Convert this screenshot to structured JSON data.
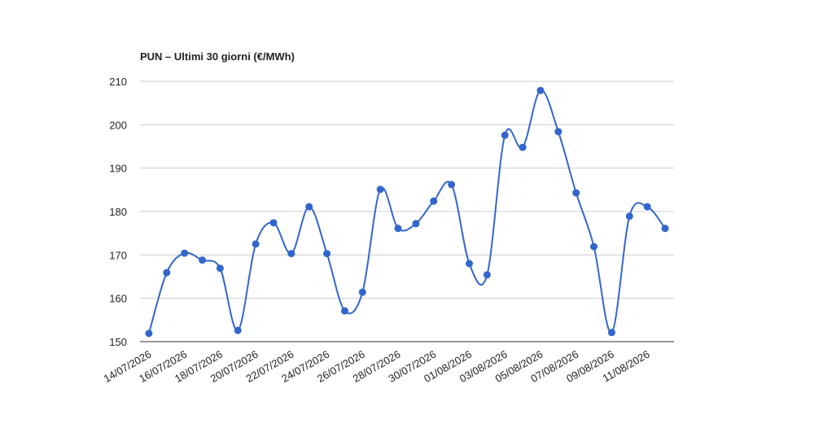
{
  "chart_data": {
    "type": "line",
    "title": "PUN – Ultimi 30 giorni (€/MWh)",
    "categories": [
      "14/07/2026",
      null,
      "16/07/2026",
      null,
      "18/07/2026",
      null,
      "20/07/2026",
      null,
      "22/07/2026",
      null,
      "24/07/2026",
      null,
      "26/07/2026",
      null,
      "28/07/2026",
      null,
      "30/07/2026",
      null,
      "01/08/2026",
      null,
      "03/08/2026",
      null,
      "05/08/2026",
      null,
      "07/08/2026",
      null,
      "09/08/2026",
      null,
      "11/08/2026",
      null
    ],
    "series": [
      {
        "color": "#3366cc",
        "values": [
          151.9,
          165.9,
          170.4,
          168.8,
          166.9,
          152.6,
          172.5,
          177.4,
          170.3,
          181.1,
          170.3,
          157.1,
          161.4,
          185.1,
          176.1,
          177.2,
          182.4,
          186.2,
          168.0,
          165.4,
          197.6,
          194.8,
          207.9,
          198.4,
          184.3,
          171.9,
          152.1,
          178.9,
          181.1,
          176.1
        ]
      }
    ],
    "ylim": [
      150,
      210
    ],
    "yticks": [
      150,
      160,
      170,
      180,
      190,
      200,
      210
    ],
    "grid": true,
    "smooth": true
  }
}
